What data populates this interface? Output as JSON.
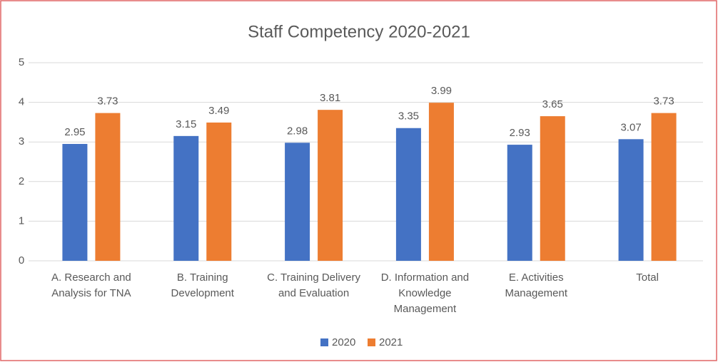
{
  "chart_data": {
    "type": "bar",
    "title": "Staff Competency 2020-2021",
    "categories": [
      "A. Research and\nAnalysis for TNA",
      "B. Training\nDevelopment",
      "C. Training Delivery\nand Evaluation",
      "D. Information and\nKnowledge\nManagement",
      "E. Activities\nManagement",
      "Total"
    ],
    "series": [
      {
        "name": "2020",
        "color": "#4472c4",
        "values": [
          2.95,
          3.15,
          2.98,
          3.35,
          2.93,
          3.07
        ]
      },
      {
        "name": "2021",
        "color": "#ed7d31",
        "values": [
          3.73,
          3.49,
          3.81,
          3.99,
          3.65,
          3.73
        ]
      }
    ],
    "ylim": [
      0,
      5
    ],
    "yticks": [
      0,
      1,
      2,
      3,
      4,
      5
    ],
    "grid": true,
    "legend": "bottom"
  }
}
